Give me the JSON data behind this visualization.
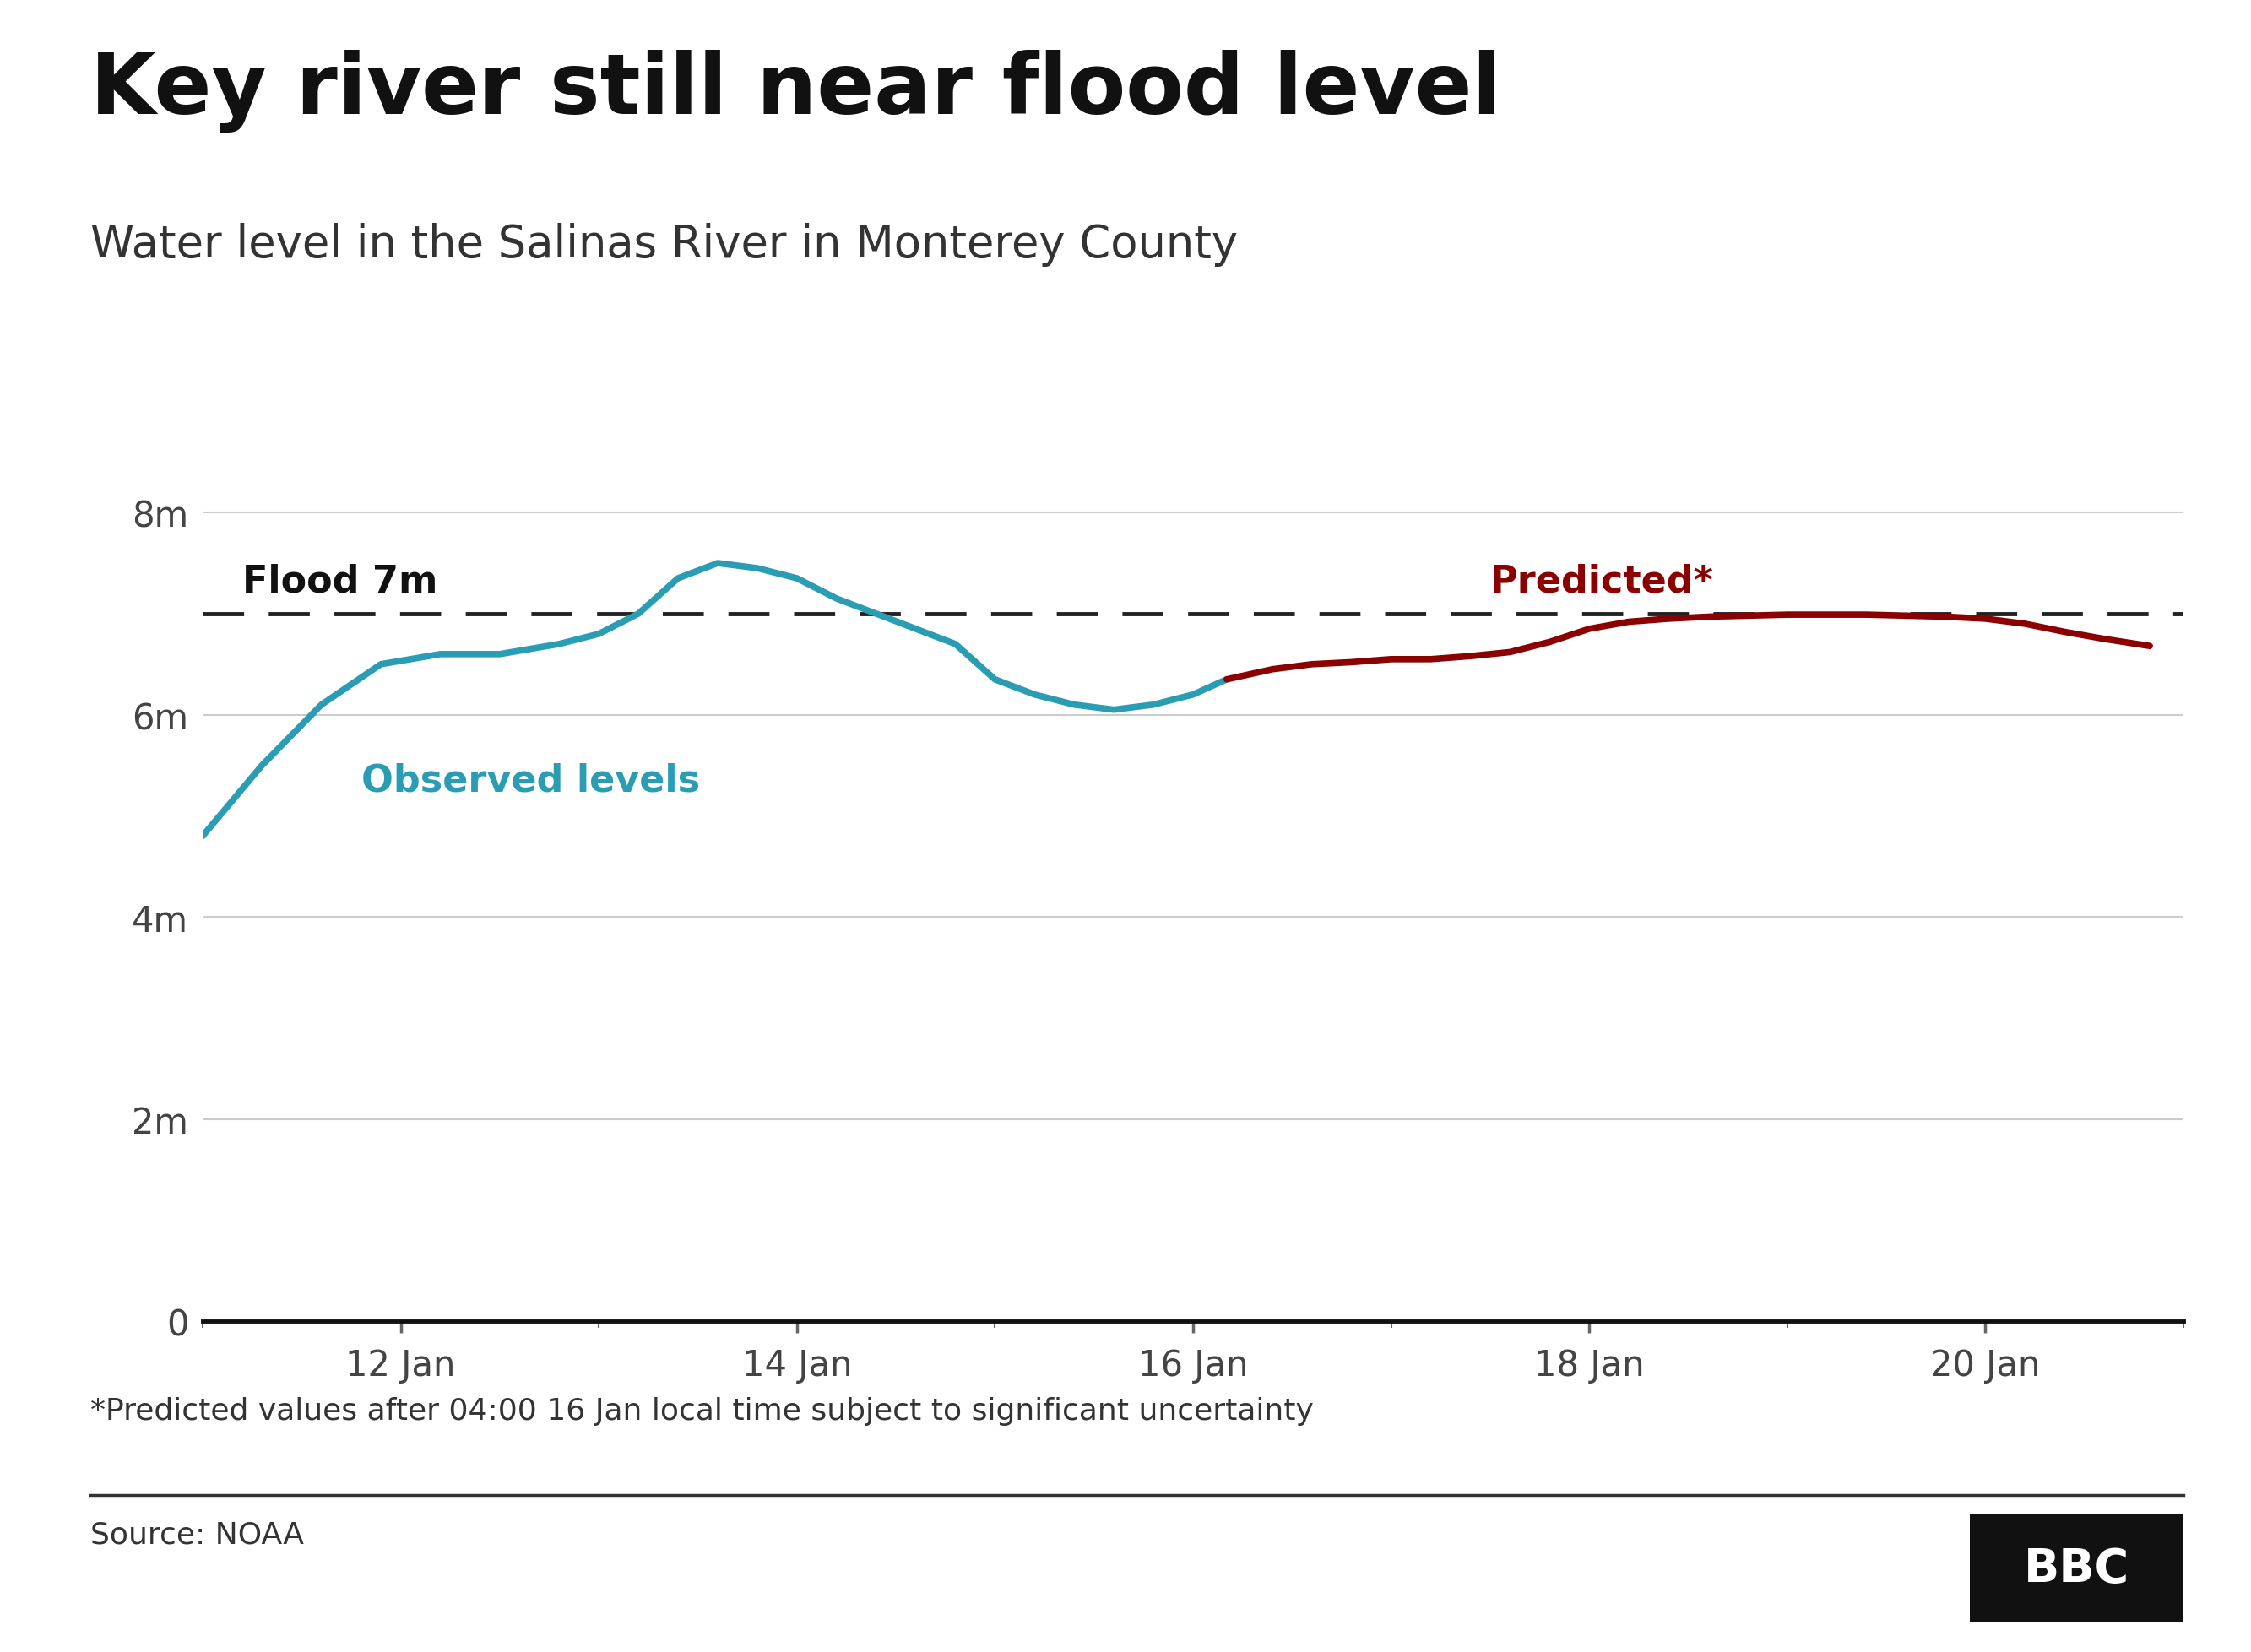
{
  "title": "Key river still near flood level",
  "subtitle": "Water level in the Salinas River in Monterey County",
  "flood_level": 7.0,
  "flood_label": "Flood 7m",
  "observed_label": "Observed levels",
  "predicted_label": "Predicted*",
  "footnote": "*Predicted values after 04:00 16 Jan local time subject to significant uncertainty",
  "source": "Source: NOAA",
  "bbc_logo": "BBC",
  "observed_color": "#2a9db5",
  "predicted_color": "#8b0000",
  "flood_line_color": "#222222",
  "background_color": "#ffffff",
  "grid_color": "#cccccc",
  "ylim": [
    0,
    8.5
  ],
  "yticks": [
    0,
    2,
    4,
    6,
    8
  ],
  "ytick_labels": [
    "0",
    "2m",
    "4m",
    "6m",
    "8m"
  ],
  "observed_x": [
    11.0,
    11.3,
    11.6,
    11.9,
    12.2,
    12.5,
    12.8,
    13.0,
    13.2,
    13.4,
    13.6,
    13.8,
    14.0,
    14.2,
    14.4,
    14.6,
    14.8,
    15.0,
    15.2,
    15.4,
    15.6,
    15.8,
    16.0,
    16.17
  ],
  "observed_y": [
    4.8,
    5.5,
    6.1,
    6.5,
    6.6,
    6.6,
    6.7,
    6.8,
    7.0,
    7.35,
    7.5,
    7.45,
    7.35,
    7.15,
    7.0,
    6.85,
    6.7,
    6.35,
    6.2,
    6.1,
    6.05,
    6.1,
    6.2,
    6.35
  ],
  "predicted_x": [
    16.17,
    16.4,
    16.6,
    16.8,
    17.0,
    17.2,
    17.4,
    17.6,
    17.8,
    18.0,
    18.2,
    18.4,
    18.6,
    18.8,
    19.0,
    19.2,
    19.4,
    19.6,
    19.8,
    20.0,
    20.2,
    20.4,
    20.6,
    20.83
  ],
  "predicted_y": [
    6.35,
    6.45,
    6.5,
    6.52,
    6.55,
    6.55,
    6.58,
    6.62,
    6.72,
    6.85,
    6.92,
    6.95,
    6.97,
    6.98,
    6.99,
    6.99,
    6.99,
    6.98,
    6.97,
    6.95,
    6.9,
    6.82,
    6.75,
    6.68
  ],
  "xtick_positions": [
    12,
    14,
    16,
    18,
    20
  ],
  "xtick_labels": [
    "12 Jan",
    "14 Jan",
    "16 Jan",
    "18 Jan",
    "20 Jan"
  ],
  "xmin": 11.0,
  "xmax": 20.83,
  "line_width": 5.5,
  "title_fontsize": 72,
  "subtitle_fontsize": 38,
  "tick_fontsize": 30,
  "annotation_fontsize": 32,
  "footnote_fontsize": 26,
  "source_fontsize": 26
}
